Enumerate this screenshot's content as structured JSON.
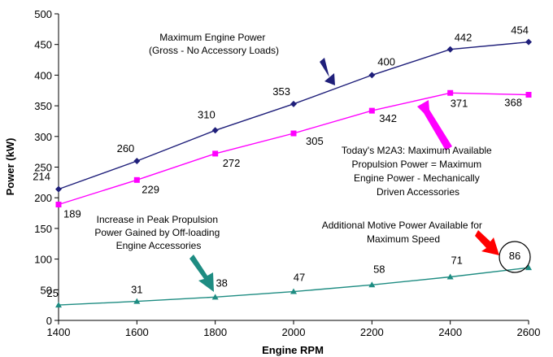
{
  "chart_data": {
    "type": "line",
    "xlabel": "Engine RPM",
    "ylabel": "Power (kW)",
    "x": [
      1400,
      1600,
      1800,
      2000,
      2200,
      2400,
      2600
    ],
    "xlim": [
      1400,
      2600
    ],
    "ylim": [
      0,
      500
    ],
    "x_ticks": [
      "1400",
      "1600",
      "1800",
      "2000",
      "2200",
      "2400",
      "2600"
    ],
    "y_ticks": [
      "0",
      "50",
      "100",
      "150",
      "200",
      "250",
      "300",
      "350",
      "400",
      "450",
      "500"
    ],
    "grid": false,
    "series": [
      {
        "key": "max",
        "values": [
          214,
          260,
          310,
          353,
          400,
          442,
          454
        ],
        "labels": [
          "214",
          "260",
          "310",
          "353",
          "400",
          "442",
          "454"
        ],
        "color": "#1f1f7a",
        "marker": "diamond"
      },
      {
        "key": "avail",
        "values": [
          189,
          229,
          272,
          305,
          342,
          371,
          368
        ],
        "labels": [
          "189",
          "229",
          "272",
          "305",
          "342",
          "371",
          "368"
        ],
        "color": "#ff00ff",
        "marker": "square"
      },
      {
        "key": "increase",
        "values": [
          25,
          31,
          38,
          47,
          58,
          71,
          86
        ],
        "labels": [
          "25",
          "31",
          "38",
          "47",
          "58",
          "71",
          "86"
        ],
        "color": "#1e8c82",
        "marker": "triangle"
      }
    ],
    "annotations": {
      "max_power": [
        "Maximum Engine Power",
        "(Gross - No Accessory Loads)"
      ],
      "available": [
        "Today's M2A3: Maximum Available",
        "Propulsion Power = Maximum",
        "Engine Power - Mechanically",
        "Driven Accessories"
      ],
      "increase": [
        "Increase in Peak Propulsion",
        "Power Gained by Off-loading",
        "Engine Accessories"
      ],
      "additional": [
        "Additional Motive Power Available for",
        "Maximum Speed"
      ]
    },
    "arrow_colors": {
      "max_power": "#1f1f7a",
      "available": "#ff00ff",
      "increase": "#1e8c82",
      "additional": "#ff0000"
    }
  }
}
